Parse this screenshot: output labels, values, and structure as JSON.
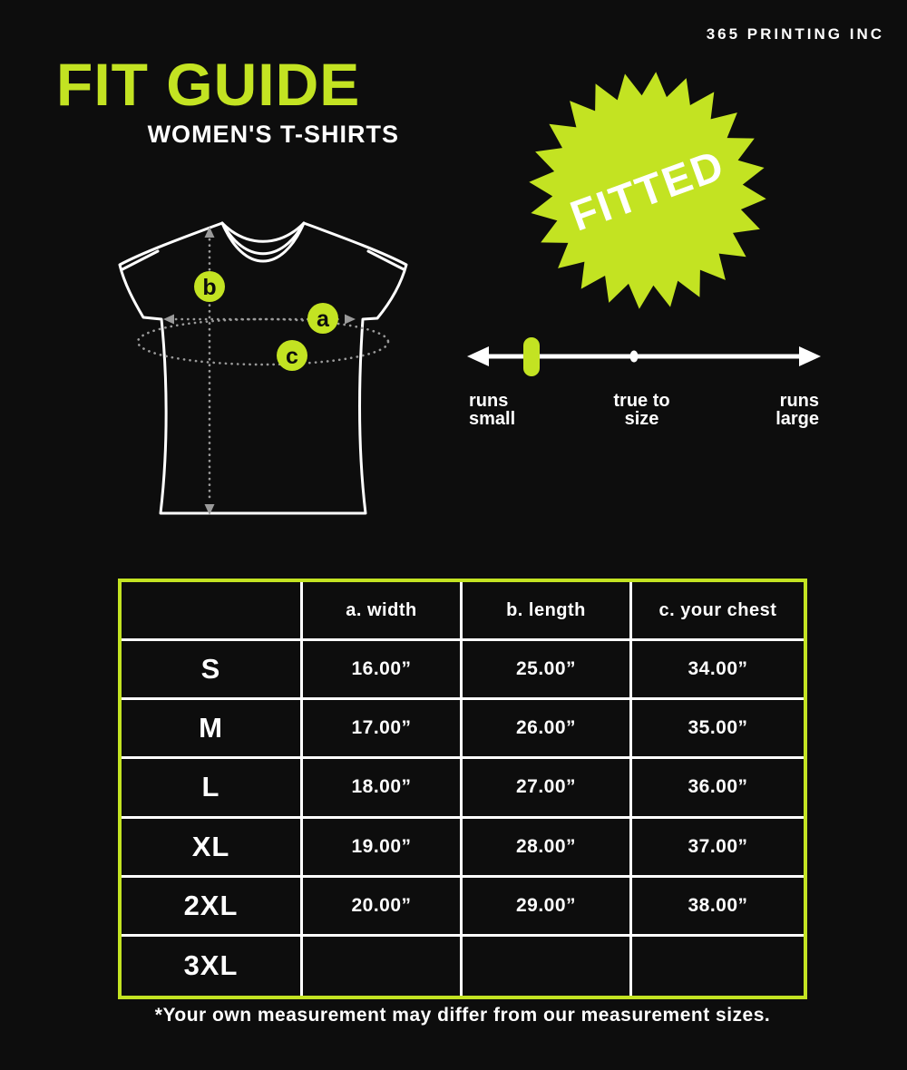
{
  "brand": "365 PRINTING INC",
  "header": {
    "title": "FIT GUIDE",
    "subtitle": "WOMEN'S T-SHIRTS"
  },
  "badge": {
    "label": "FITTED"
  },
  "diagram": {
    "marker_a": "a",
    "marker_b": "b",
    "marker_c": "c"
  },
  "fit_scale": {
    "marker_value": "runs small",
    "labels": {
      "left1": "runs",
      "left2": "small",
      "center1": "true to",
      "center2": "size",
      "right1": "runs",
      "right2": "large"
    }
  },
  "size_chart": {
    "columns": {
      "width": "a. width",
      "length": "b. length",
      "chest": "c. your chest"
    },
    "rows": [
      {
        "size": "S",
        "width": "16.00”",
        "length": "25.00”",
        "chest": "34.00”"
      },
      {
        "size": "M",
        "width": "17.00”",
        "length": "26.00”",
        "chest": "35.00”"
      },
      {
        "size": "L",
        "width": "18.00”",
        "length": "27.00”",
        "chest": "36.00”"
      },
      {
        "size": "XL",
        "width": "19.00”",
        "length": "28.00”",
        "chest": "37.00”"
      },
      {
        "size": "2XL",
        "width": "20.00”",
        "length": "29.00”",
        "chest": "38.00”"
      },
      {
        "size": "3XL",
        "width": "",
        "length": "",
        "chest": ""
      }
    ]
  },
  "footnote": "*Your own measurement may differ from our measurement sizes.",
  "colors": {
    "accent": "#c3e322",
    "background": "#0d0d0d",
    "text": "#ffffff"
  }
}
